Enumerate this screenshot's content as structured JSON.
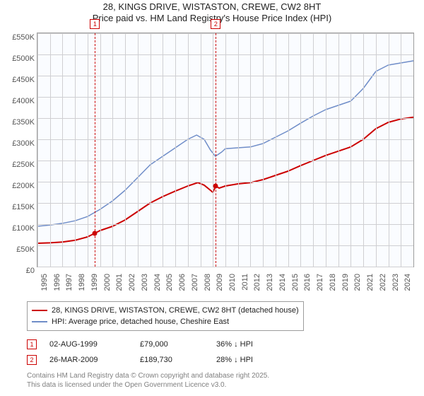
{
  "title_line1": "28, KINGS DRIVE, WISTASTON, CREWE, CW2 8HT",
  "title_line2": "Price paid vs. HM Land Registry's House Price Index (HPI)",
  "chart": {
    "type": "line",
    "background_color": "#fafcff",
    "border_color": "#9d9d9d",
    "grid_color": "#cfcfd2",
    "axis_label_color": "#555555",
    "axis_label_fontsize": 11,
    "x_min_year": 1995,
    "x_max_year": 2025,
    "x_tick_years": [
      1995,
      1996,
      1997,
      1998,
      1999,
      2000,
      2001,
      2002,
      2003,
      2004,
      2005,
      2006,
      2007,
      2008,
      2009,
      2010,
      2011,
      2012,
      2013,
      2014,
      2015,
      2016,
      2017,
      2018,
      2019,
      2020,
      2021,
      2022,
      2023,
      2024
    ],
    "y_min": 0,
    "y_max": 550,
    "y_tick_step": 50,
    "y_tick_labels": [
      "£0",
      "£50K",
      "£100K",
      "£150K",
      "£200K",
      "£250K",
      "£300K",
      "£350K",
      "£400K",
      "£450K",
      "£500K",
      "£550K"
    ],
    "series": [
      {
        "name": "price_paid",
        "label": "28, KINGS DRIVE, WISTASTON, CREWE, CW2 8HT (detached house)",
        "color": "#cc0000",
        "line_width": 2,
        "points": [
          [
            1995.0,
            55
          ],
          [
            1996.0,
            56
          ],
          [
            1997.0,
            58
          ],
          [
            1998.0,
            62
          ],
          [
            1999.0,
            70
          ],
          [
            1999.6,
            79
          ],
          [
            2000.0,
            85
          ],
          [
            2001.0,
            95
          ],
          [
            2002.0,
            110
          ],
          [
            2003.0,
            130
          ],
          [
            2004.0,
            150
          ],
          [
            2005.0,
            165
          ],
          [
            2006.0,
            178
          ],
          [
            2007.0,
            190
          ],
          [
            2007.8,
            198
          ],
          [
            2008.3,
            192
          ],
          [
            2008.8,
            180
          ],
          [
            2009.0,
            175
          ],
          [
            2009.23,
            189.73
          ],
          [
            2009.5,
            185
          ],
          [
            2010.0,
            190
          ],
          [
            2011.0,
            195
          ],
          [
            2012.0,
            198
          ],
          [
            2013.0,
            205
          ],
          [
            2014.0,
            215
          ],
          [
            2015.0,
            225
          ],
          [
            2016.0,
            238
          ],
          [
            2017.0,
            250
          ],
          [
            2018.0,
            262
          ],
          [
            2019.0,
            272
          ],
          [
            2020.0,
            282
          ],
          [
            2021.0,
            300
          ],
          [
            2022.0,
            325
          ],
          [
            2023.0,
            340
          ],
          [
            2024.0,
            348
          ],
          [
            2025.0,
            352
          ]
        ]
      },
      {
        "name": "hpi",
        "label": "HPI: Average price, detached house, Cheshire East",
        "color": "#6f8dc8",
        "line_width": 1.5,
        "points": [
          [
            1995.0,
            95
          ],
          [
            1996.0,
            98
          ],
          [
            1997.0,
            102
          ],
          [
            1998.0,
            108
          ],
          [
            1999.0,
            118
          ],
          [
            2000.0,
            135
          ],
          [
            2001.0,
            155
          ],
          [
            2002.0,
            180
          ],
          [
            2003.0,
            210
          ],
          [
            2004.0,
            240
          ],
          [
            2005.0,
            260
          ],
          [
            2006.0,
            280
          ],
          [
            2007.0,
            300
          ],
          [
            2007.7,
            310
          ],
          [
            2008.3,
            300
          ],
          [
            2008.8,
            275
          ],
          [
            2009.2,
            260
          ],
          [
            2009.7,
            270
          ],
          [
            2010.0,
            278
          ],
          [
            2011.0,
            280
          ],
          [
            2012.0,
            282
          ],
          [
            2013.0,
            290
          ],
          [
            2014.0,
            305
          ],
          [
            2015.0,
            320
          ],
          [
            2016.0,
            338
          ],
          [
            2017.0,
            355
          ],
          [
            2018.0,
            370
          ],
          [
            2019.0,
            380
          ],
          [
            2020.0,
            390
          ],
          [
            2021.0,
            420
          ],
          [
            2022.0,
            460
          ],
          [
            2023.0,
            475
          ],
          [
            2024.0,
            480
          ],
          [
            2025.0,
            485
          ]
        ]
      }
    ],
    "event_markers": [
      {
        "n": "1",
        "year": 1999.59,
        "value": 79,
        "color": "#cc0000"
      },
      {
        "n": "2",
        "year": 2009.23,
        "value": 189.73,
        "color": "#cc0000"
      }
    ]
  },
  "legend": {
    "border_color": "#9d9d9d",
    "items": [
      {
        "color": "#cc0000",
        "label": "28, KINGS DRIVE, WISTASTON, CREWE, CW2 8HT (detached house)"
      },
      {
        "color": "#6f8dc8",
        "label": "HPI: Average price, detached house, Cheshire East"
      }
    ]
  },
  "transactions": [
    {
      "n": "1",
      "date": "02-AUG-1999",
      "price": "£79,000",
      "delta": "36% ↓ HPI"
    },
    {
      "n": "2",
      "date": "26-MAR-2009",
      "price": "£189,730",
      "delta": "28% ↓ HPI"
    }
  ],
  "footer_line1": "Contains HM Land Registry data © Crown copyright and database right 2025.",
  "footer_line2": "This data is licensed under the Open Government Licence v3.0."
}
